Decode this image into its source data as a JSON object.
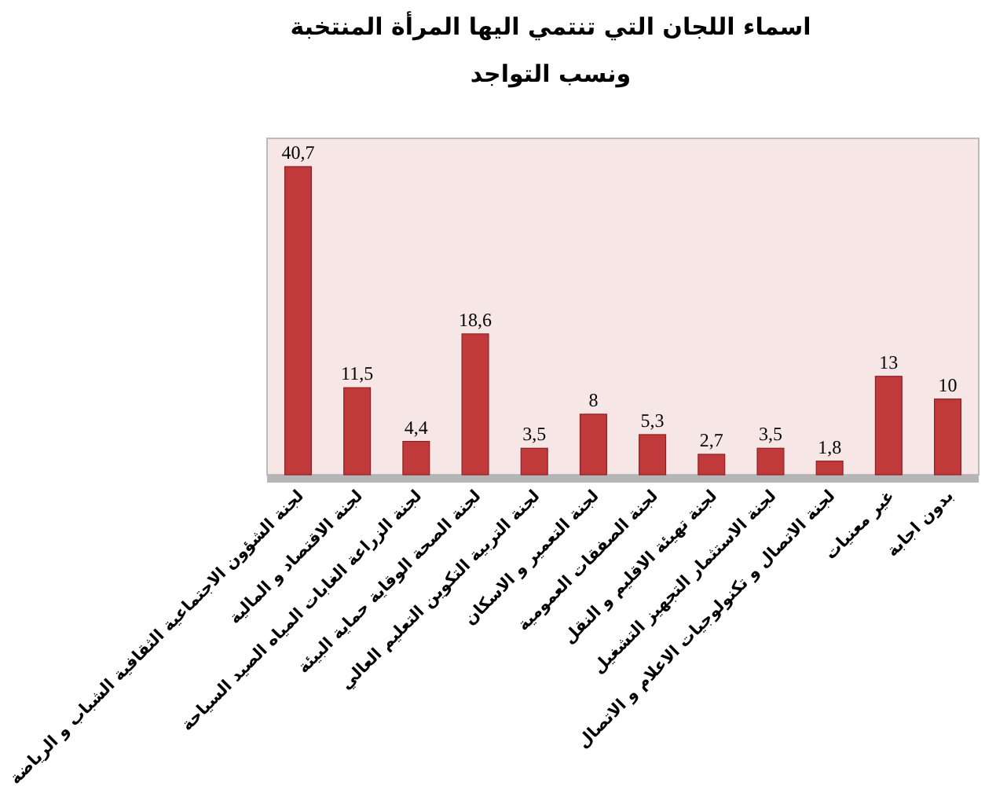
{
  "chart_data": {
    "type": "bar",
    "title": "اسماء اللجان التي تنتمي اليها المرأة المنتخبة",
    "subtitle": "ونسب التواجد",
    "categories": [
      "لجنة الشؤون الاجتماعية الثقافية الشباب و الرياضة",
      "لجنة الاقتصاد و المالية",
      "لجنة الزراعة الغابات المياه الصيد السياحة",
      "لجنة الصحة الوقاية حماية البيئة",
      "لجنة التربية التكوين التعليم العالي",
      "لجنة التعمير و الاسكان",
      "لجنة الصفقات العمومية",
      "لجنة تهيئة الاقليم و النقل",
      "لجنة الاستثمار التجهيز التشغيل",
      "لجنة الاتصال و تكنولوجيات الاعلام و الاتصال",
      "غير معنيات",
      "بدون اجابة"
    ],
    "values": [
      40.7,
      11.5,
      4.4,
      18.6,
      3.5,
      8,
      5.3,
      2.7,
      3.5,
      1.8,
      13,
      10
    ],
    "value_labels": [
      "40,7",
      "11,5",
      "4,4",
      "18,6",
      "3,5",
      "8",
      "5,3",
      "2,7",
      "3,5",
      "1,8",
      "13",
      "10"
    ],
    "color": "#c0393b",
    "tick_labels": "x"
  }
}
